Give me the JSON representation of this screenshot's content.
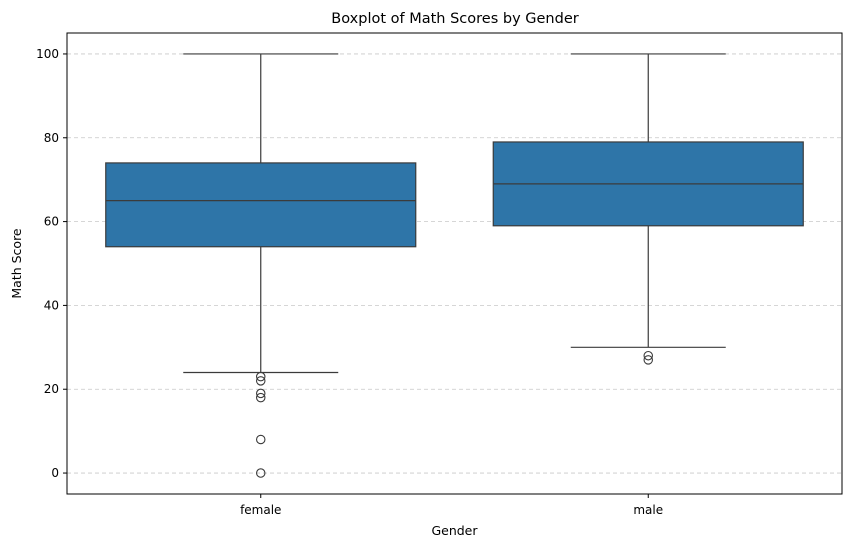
{
  "chart_data": {
    "type": "box",
    "title": "Boxplot of Math Scores by Gender",
    "xlabel": "Gender",
    "ylabel": "Math Score",
    "categories": [
      "female",
      "male"
    ],
    "ylim": [
      -5,
      105
    ],
    "yticks": [
      0,
      20,
      40,
      60,
      80,
      100
    ],
    "grid": "y",
    "grid_style": "dashed",
    "box_color": "#2e75a8",
    "line_color": "#3b3b3b",
    "boxes": [
      {
        "category": "female",
        "whisker_low": 24,
        "q1": 54,
        "median": 65,
        "q3": 74,
        "whisker_high": 100,
        "outliers": [
          23,
          22,
          19,
          18,
          8,
          0
        ]
      },
      {
        "category": "male",
        "whisker_low": 30,
        "q1": 59,
        "median": 69,
        "q3": 79,
        "whisker_high": 100,
        "outliers": [
          28,
          27
        ]
      }
    ]
  }
}
